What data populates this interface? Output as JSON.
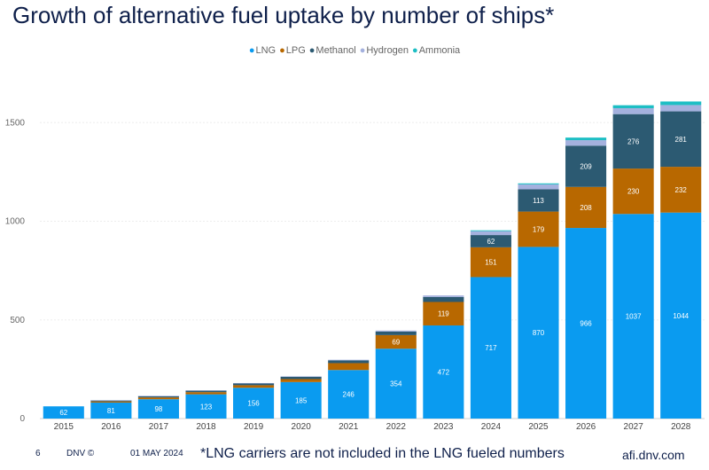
{
  "title": "Growth of alternative fuel uptake by number of ships*",
  "footer": {
    "page_number": "6",
    "brand": "DNV ©",
    "date": "01 MAY 2024",
    "note": "*LNG carriers are not included in the LNG fueled numbers",
    "website": "afi.dnv.com"
  },
  "chart_data": {
    "type": "bar",
    "stacked": true,
    "categories": [
      "2015",
      "2016",
      "2017",
      "2018",
      "2019",
      "2020",
      "2021",
      "2022",
      "2023",
      "2024",
      "2025",
      "2026",
      "2027",
      "2028"
    ],
    "ylim": [
      0,
      1600
    ],
    "yticks": [
      0,
      500,
      1000,
      1500
    ],
    "grid": true,
    "legend_position": "top",
    "series": [
      {
        "name": "LNG",
        "color": "#0a9bf0",
        "values": [
          62,
          81,
          98,
          123,
          156,
          185,
          246,
          354,
          472,
          717,
          870,
          966,
          1037,
          1044
        ],
        "labels": [
          "62",
          "81",
          "98",
          "123",
          "156",
          "185",
          "246",
          "354",
          "472",
          "717",
          "870",
          "966",
          "1037",
          "1044"
        ]
      },
      {
        "name": "LPG",
        "color": "#b86800",
        "values": [
          0,
          6,
          9,
          11,
          13,
          15,
          35,
          69,
          119,
          151,
          179,
          208,
          230,
          232
        ],
        "labels": [
          "",
          "",
          "",
          "",
          "",
          "",
          "",
          "69",
          "119",
          "151",
          "179",
          "208",
          "230",
          "232"
        ]
      },
      {
        "name": "Methanol",
        "color": "#2c5a72",
        "values": [
          0,
          5,
          7,
          8,
          10,
          12,
          14,
          18,
          25,
          62,
          113,
          209,
          276,
          281
        ],
        "labels": [
          "",
          "",
          "",
          "",
          "",
          "",
          "",
          "",
          "",
          "62",
          "113",
          "209",
          "276",
          "281"
        ]
      },
      {
        "name": "Hydrogen",
        "color": "#a4b1de",
        "values": [
          0,
          1,
          1,
          1,
          1,
          2,
          3,
          5,
          8,
          20,
          25,
          28,
          30,
          32
        ],
        "labels": [
          "",
          "",
          "",
          "",
          "",
          "",
          "",
          "",
          "",
          "",
          "",
          "",
          "",
          ""
        ]
      },
      {
        "name": "Ammonia",
        "color": "#1dbec4",
        "values": [
          0,
          0,
          0,
          0,
          0,
          0,
          0,
          0,
          0,
          4,
          5,
          13,
          15,
          18
        ],
        "labels": [
          "",
          "",
          "",
          "",
          "",
          "",
          "",
          "",
          "",
          "",
          "",
          "",
          "",
          ""
        ]
      }
    ]
  }
}
